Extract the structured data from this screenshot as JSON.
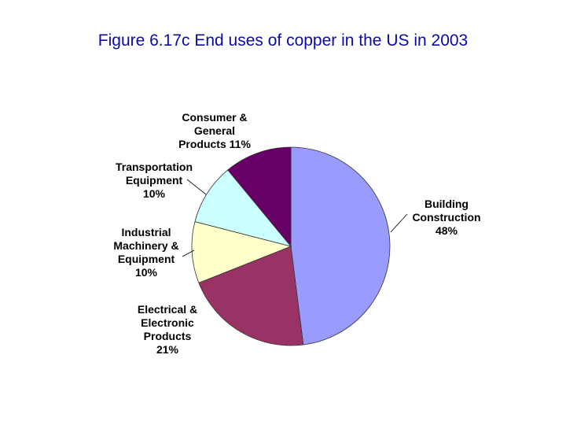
{
  "title": "Figure 6.17c End uses of copper in the US in 2003",
  "chart_data": {
    "type": "pie",
    "title": "Figure 6.17c End uses of copper in the US in 2003",
    "slices": [
      {
        "label_lines": [
          "Building",
          "Construction",
          "48%"
        ],
        "value": 48,
        "color": "#9a9bff"
      },
      {
        "label_lines": [
          "Electrical &",
          "Electronic",
          "Products",
          "21%"
        ],
        "value": 21,
        "color": "#993366"
      },
      {
        "label_lines": [
          "Industrial",
          "Machinery &",
          "Equipment",
          "10%"
        ],
        "value": 10,
        "color": "#ffffcc"
      },
      {
        "label_lines": [
          "Transportation",
          "Equipment",
          "10%"
        ],
        "value": 10,
        "color": "#ccffff"
      },
      {
        "label_lines": [
          "Consumer &",
          "General",
          "Products 11%"
        ],
        "value": 11,
        "color": "#660066"
      }
    ],
    "start": "12 o'clock",
    "direction": "clockwise",
    "legend": "none"
  }
}
